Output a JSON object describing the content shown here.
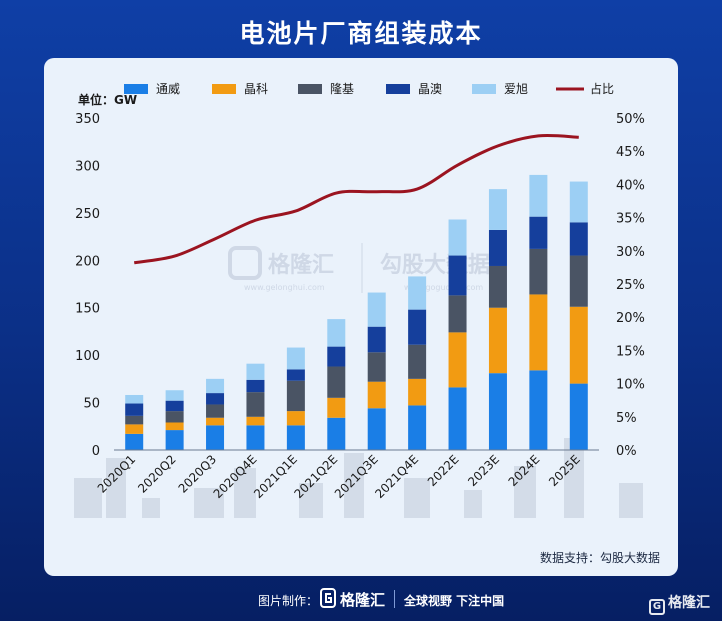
{
  "page": {
    "title": "电池片厂商组装成本",
    "unit_label": "单位：GW",
    "source": "数据支持：勾股大数据",
    "footer_credit": "图片制作：",
    "footer_logo": "格隆汇",
    "footer_slogan": "全球视野 下注中国",
    "corner_logo": "格隆汇",
    "watermark_left": "格隆汇",
    "watermark_right": "勾股大数据",
    "watermark_left_small": "www.gelonghui.com",
    "watermark_right_small": "www.gogudata.com"
  },
  "chart_data": {
    "type": "bar",
    "stacked": true,
    "categories": [
      "2020Q1",
      "2020Q2",
      "2020Q3",
      "2020Q4E",
      "2021Q1E",
      "2021Q2E",
      "2021Q3E",
      "2021Q4E",
      "2022E",
      "2023E",
      "2024E",
      "2025E"
    ],
    "series": [
      {
        "name": "通威",
        "color": "#1a7ee6",
        "values": [
          17,
          21,
          26,
          26,
          26,
          34,
          44,
          47,
          66,
          81,
          84,
          70
        ]
      },
      {
        "name": "晶科",
        "color": "#f29b12",
        "values": [
          10,
          8,
          8,
          9,
          15,
          21,
          28,
          28,
          58,
          69,
          80,
          81
        ]
      },
      {
        "name": "隆基",
        "color": "#4a5464",
        "values": [
          9,
          12,
          14,
          26,
          32,
          33,
          31,
          36,
          39,
          44,
          48,
          54
        ]
      },
      {
        "name": "晶澳",
        "color": "#153f9c",
        "values": [
          13,
          11,
          12,
          13,
          12,
          21,
          27,
          37,
          42,
          38,
          34,
          35
        ]
      },
      {
        "name": "爱旭",
        "color": "#9ccff4",
        "values": [
          9,
          11,
          15,
          17,
          23,
          29,
          36,
          35,
          38,
          43,
          44,
          43
        ]
      }
    ],
    "line": {
      "name": "占比",
      "color": "#9b1420",
      "values": [
        28.2,
        29.2,
        31.8,
        34.6,
        36.0,
        38.7,
        38.9,
        39.3,
        42.9,
        45.8,
        47.3,
        47.1
      ]
    },
    "y_left": {
      "min": 0,
      "max": 350,
      "ticks": [
        0,
        50,
        100,
        150,
        200,
        250,
        300,
        350
      ]
    },
    "y_right": {
      "min": 0,
      "max": 50,
      "ticks": [
        "0%",
        "5%",
        "10%",
        "15%",
        "20%",
        "25%",
        "30%",
        "35%",
        "40%",
        "45%",
        "50%"
      ]
    },
    "legend_position": "top",
    "grid": false
  }
}
